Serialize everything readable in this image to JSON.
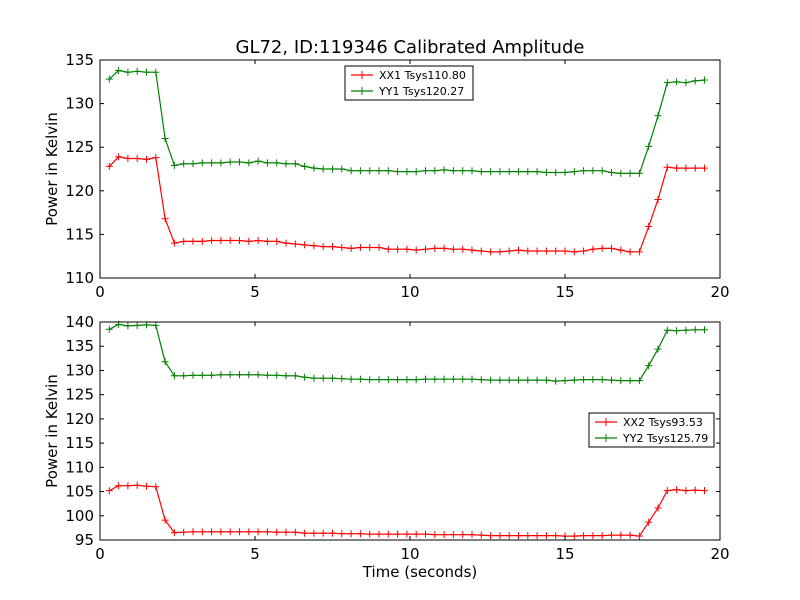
{
  "figure": {
    "title": "GL72, ID:119346 Calibrated Amplitude",
    "colors": {
      "xx": "#ff0000",
      "yy": "#008000",
      "axis": "#000000"
    }
  },
  "chart_data": [
    {
      "type": "line",
      "title": "GL72, ID:119346 Calibrated Amplitude",
      "xlabel": "",
      "ylabel": "Power in Kelvin",
      "xlim": [
        0,
        20
      ],
      "ylim": [
        110,
        135
      ],
      "xticks": [
        "0",
        "5",
        "10",
        "15",
        "20"
      ],
      "yticks": [
        "110",
        "115",
        "120",
        "125",
        "130",
        "135"
      ],
      "grid": false,
      "legend_position": "top-center",
      "x": [
        0.3,
        0.6,
        0.9,
        1.2,
        1.5,
        1.8,
        2.1,
        2.4,
        2.7,
        3.0,
        3.3,
        3.6,
        3.9,
        4.2,
        4.5,
        4.8,
        5.1,
        5.4,
        5.7,
        6.0,
        6.3,
        6.6,
        6.9,
        7.2,
        7.5,
        7.8,
        8.1,
        8.4,
        8.7,
        9.0,
        9.3,
        9.6,
        9.9,
        10.2,
        10.5,
        10.8,
        11.1,
        11.4,
        11.7,
        12.0,
        12.3,
        12.6,
        12.9,
        13.2,
        13.5,
        13.8,
        14.1,
        14.4,
        14.7,
        15.0,
        15.3,
        15.6,
        15.9,
        16.2,
        16.5,
        16.8,
        17.1,
        17.4,
        17.7,
        18.0,
        18.3,
        18.6,
        18.9,
        19.2,
        19.5
      ],
      "series": [
        {
          "name": "XX1 Tsys110.80",
          "color": "#ff0000",
          "values": [
            122.8,
            123.9,
            123.7,
            123.7,
            123.6,
            123.8,
            116.8,
            114.0,
            114.2,
            114.2,
            114.2,
            114.3,
            114.3,
            114.3,
            114.3,
            114.2,
            114.3,
            114.2,
            114.2,
            114.0,
            113.9,
            113.8,
            113.7,
            113.6,
            113.6,
            113.5,
            113.4,
            113.5,
            113.5,
            113.5,
            113.3,
            113.3,
            113.3,
            113.2,
            113.3,
            113.4,
            113.4,
            113.3,
            113.3,
            113.2,
            113.1,
            113.0,
            113.0,
            113.1,
            113.2,
            113.1,
            113.1,
            113.1,
            113.1,
            113.1,
            113.0,
            113.1,
            113.3,
            113.4,
            113.4,
            113.2,
            113.0,
            113.0,
            115.9,
            119.0,
            122.7,
            122.6,
            122.6,
            122.6,
            122.6
          ]
        },
        {
          "name": "YY1 Tsys120.27",
          "color": "#008000",
          "values": [
            132.8,
            133.8,
            133.6,
            133.7,
            133.6,
            133.6,
            126.0,
            122.9,
            123.1,
            123.1,
            123.2,
            123.2,
            123.2,
            123.3,
            123.3,
            123.2,
            123.4,
            123.2,
            123.2,
            123.1,
            123.1,
            122.8,
            122.6,
            122.5,
            122.5,
            122.5,
            122.3,
            122.3,
            122.3,
            122.3,
            122.3,
            122.2,
            122.2,
            122.2,
            122.3,
            122.3,
            122.4,
            122.3,
            122.3,
            122.3,
            122.2,
            122.2,
            122.2,
            122.2,
            122.2,
            122.2,
            122.2,
            122.1,
            122.1,
            122.1,
            122.2,
            122.3,
            122.3,
            122.3,
            122.1,
            122.0,
            122.0,
            122.0,
            125.1,
            128.6,
            132.4,
            132.5,
            132.4,
            132.6,
            132.7
          ]
        }
      ]
    },
    {
      "type": "line",
      "title": "",
      "xlabel": "Time (seconds)",
      "ylabel": "Power in Kelvin",
      "xlim": [
        0,
        20
      ],
      "ylim": [
        95,
        140
      ],
      "xticks": [
        "0",
        "5",
        "10",
        "15",
        "20"
      ],
      "yticks": [
        "95",
        "100",
        "105",
        "110",
        "115",
        "120",
        "125",
        "130",
        "135",
        "140"
      ],
      "grid": false,
      "legend_position": "center-right",
      "x": [
        0.3,
        0.6,
        0.9,
        1.2,
        1.5,
        1.8,
        2.1,
        2.4,
        2.7,
        3.0,
        3.3,
        3.6,
        3.9,
        4.2,
        4.5,
        4.8,
        5.1,
        5.4,
        5.7,
        6.0,
        6.3,
        6.6,
        6.9,
        7.2,
        7.5,
        7.8,
        8.1,
        8.4,
        8.7,
        9.0,
        9.3,
        9.6,
        9.9,
        10.2,
        10.5,
        10.8,
        11.1,
        11.4,
        11.7,
        12.0,
        12.3,
        12.6,
        12.9,
        13.2,
        13.5,
        13.8,
        14.1,
        14.4,
        14.7,
        15.0,
        15.3,
        15.6,
        15.9,
        16.2,
        16.5,
        16.8,
        17.1,
        17.4,
        17.7,
        18.0,
        18.3,
        18.6,
        18.9,
        19.2,
        19.5
      ],
      "series": [
        {
          "name": "XX2 Tsys93.53",
          "color": "#ff0000",
          "values": [
            105.2,
            106.2,
            106.2,
            106.3,
            106.1,
            106.0,
            99.1,
            96.5,
            96.6,
            96.7,
            96.7,
            96.7,
            96.7,
            96.7,
            96.7,
            96.7,
            96.7,
            96.7,
            96.6,
            96.6,
            96.6,
            96.4,
            96.4,
            96.4,
            96.4,
            96.3,
            96.3,
            96.3,
            96.2,
            96.2,
            96.2,
            96.2,
            96.2,
            96.2,
            96.2,
            96.1,
            96.1,
            96.1,
            96.1,
            96.1,
            96.0,
            95.9,
            95.9,
            95.9,
            95.9,
            95.9,
            95.9,
            95.9,
            95.9,
            95.8,
            95.8,
            95.9,
            95.9,
            95.9,
            96.0,
            96.0,
            96.0,
            95.8,
            98.7,
            101.6,
            105.2,
            105.4,
            105.2,
            105.3,
            105.2
          ]
        },
        {
          "name": "YY2 Tsys125.79",
          "color": "#008000",
          "values": [
            138.5,
            139.5,
            139.2,
            139.3,
            139.4,
            139.3,
            131.8,
            128.9,
            128.9,
            129.0,
            129.0,
            129.0,
            129.1,
            129.1,
            129.1,
            129.1,
            129.1,
            129.0,
            129.0,
            128.9,
            128.9,
            128.6,
            128.4,
            128.4,
            128.4,
            128.3,
            128.2,
            128.2,
            128.1,
            128.1,
            128.1,
            128.1,
            128.1,
            128.1,
            128.2,
            128.2,
            128.2,
            128.2,
            128.2,
            128.2,
            128.1,
            128.0,
            128.0,
            128.0,
            128.0,
            128.0,
            128.0,
            128.0,
            127.8,
            127.9,
            128.0,
            128.1,
            128.1,
            128.1,
            128.0,
            127.9,
            127.9,
            127.9,
            131.0,
            134.4,
            138.3,
            138.2,
            138.3,
            138.4,
            138.4
          ]
        }
      ]
    }
  ]
}
